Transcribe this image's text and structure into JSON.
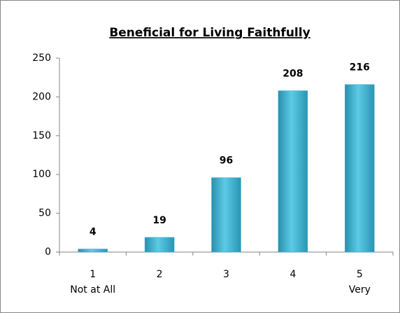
{
  "chart_data": {
    "type": "bar",
    "title": "Beneficial for Living Faithfully",
    "categories": [
      "1",
      "2",
      "3",
      "4",
      "5"
    ],
    "category_sublabels": [
      "Not at All",
      null,
      null,
      null,
      "Very"
    ],
    "values": [
      4,
      19,
      96,
      208,
      216
    ],
    "color": "#3fb0cf",
    "ylim": [
      0,
      250
    ],
    "yticks": [
      0,
      50,
      100,
      150,
      200,
      250
    ],
    "grid": false
  }
}
